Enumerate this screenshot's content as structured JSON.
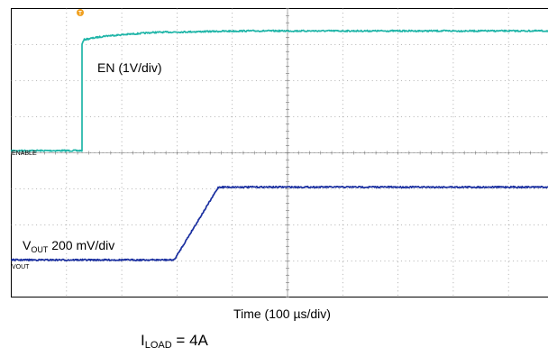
{
  "chart_data": {
    "type": "line",
    "title": "",
    "xlabel": "Time (100 µs/div)",
    "ylabel": "",
    "grid": true,
    "x_unit": "µs",
    "xlim": [
      0,
      1000
    ],
    "time_per_div_us": 100,
    "divisions": {
      "horizontal": 10,
      "vertical": 8
    },
    "trigger_marker": "T",
    "series": [
      {
        "name": "EN (1V/div)",
        "marker_label": "ENABLE",
        "color": "#1fb5a8",
        "volts_per_div": 1,
        "baseline_div": 4.06,
        "x": [
          0,
          128,
          128,
          132,
          170,
          260,
          420,
          1000
        ],
        "y": [
          0,
          0,
          2.95,
          3.08,
          3.18,
          3.28,
          3.32,
          3.32
        ]
      },
      {
        "name": "VOUT 200 mV/div",
        "marker_label": "VOUT",
        "color": "#1a2fa0",
        "volts_per_div": 0.2,
        "baseline_div": 1.03,
        "x": [
          0,
          30,
          295,
          375,
          1000
        ],
        "y": [
          0,
          0,
          0,
          2.02,
          2.02
        ]
      }
    ],
    "annotations": [
      {
        "label_main": "EN (1V/div)"
      },
      {
        "label_main": "V",
        "label_sub": "OUT",
        "label_rest": " 200 mV/div"
      }
    ]
  },
  "footer": {
    "load_main": "I",
    "load_sub": "LOAD",
    "load_rest": " = 4A"
  }
}
